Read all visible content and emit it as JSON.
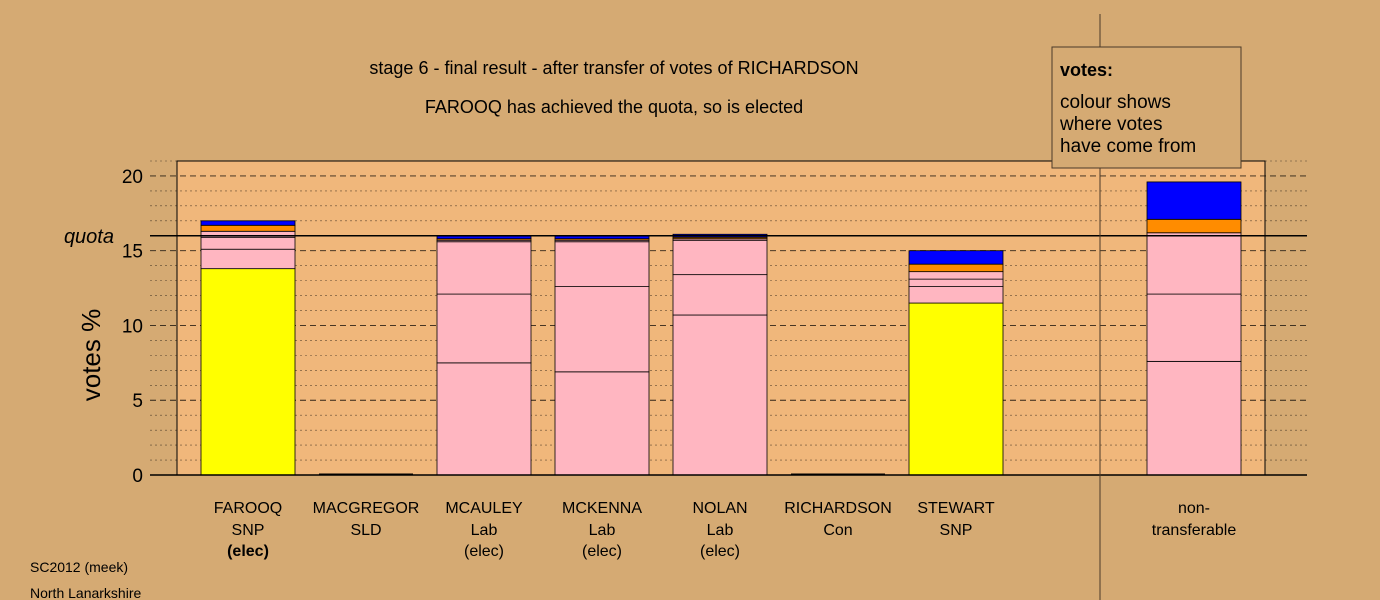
{
  "chart_data": {
    "type": "bar",
    "stacked": true,
    "title": "stage 6 - final result - after transfer of votes of RICHARDSON",
    "subtitle": "FAROOQ has achieved the quota, so is elected",
    "ylabel": "votes %",
    "ylim": [
      0,
      21
    ],
    "yticks": [
      "0",
      "5",
      "10",
      "15",
      "20"
    ],
    "quota_label": "quota",
    "quota_value": 16.0,
    "grid": true,
    "legend": {
      "title": "votes:",
      "lines": [
        "colour shows",
        "where votes",
        "have come from"
      ]
    },
    "categories": [
      {
        "name": "FAROOQ",
        "party": "SNP",
        "status": "(elec)",
        "status_bold": true,
        "segments": [
          {
            "value": 13.8,
            "color": "#ffff00"
          },
          {
            "value": 1.3,
            "color": "#ffb6c1"
          },
          {
            "value": 0.8,
            "color": "#ffb6c1"
          },
          {
            "value": 0.4,
            "color": "#ffb6c1"
          },
          {
            "value": 0.4,
            "color": "#ff8c00"
          },
          {
            "value": 0.3,
            "color": "#0000ff"
          }
        ]
      },
      {
        "name": "MACGREGOR",
        "party": "SLD",
        "status": "",
        "status_bold": false,
        "segments": []
      },
      {
        "name": "MCAULEY",
        "party": "Lab",
        "status": "(elec)",
        "status_bold": false,
        "segments": [
          {
            "value": 7.5,
            "color": "#ffb6c1"
          },
          {
            "value": 4.6,
            "color": "#ffb6c1"
          },
          {
            "value": 3.5,
            "color": "#ffb6c1"
          },
          {
            "value": 0.1,
            "color": "#ffb6c1"
          },
          {
            "value": 0.1,
            "color": "#ff8c00"
          },
          {
            "value": 0.2,
            "color": "#0000ff"
          }
        ]
      },
      {
        "name": "MCKENNA",
        "party": "Lab",
        "status": "(elec)",
        "status_bold": false,
        "segments": [
          {
            "value": 6.9,
            "color": "#ffb6c1"
          },
          {
            "value": 5.7,
            "color": "#ffb6c1"
          },
          {
            "value": 3.0,
            "color": "#ffb6c1"
          },
          {
            "value": 0.1,
            "color": "#ffb6c1"
          },
          {
            "value": 0.1,
            "color": "#ff8c00"
          },
          {
            "value": 0.2,
            "color": "#0000ff"
          }
        ]
      },
      {
        "name": "NOLAN",
        "party": "Lab",
        "status": "(elec)",
        "status_bold": false,
        "segments": [
          {
            "value": 10.7,
            "color": "#ffb6c1"
          },
          {
            "value": 2.7,
            "color": "#ffb6c1"
          },
          {
            "value": 2.3,
            "color": "#ffb6c1"
          },
          {
            "value": 0.1,
            "color": "#ffb6c1"
          },
          {
            "value": 0.1,
            "color": "#ff8c00"
          },
          {
            "value": 0.2,
            "color": "#0000ff"
          }
        ]
      },
      {
        "name": "RICHARDSON",
        "party": "Con",
        "status": "",
        "status_bold": false,
        "segments": []
      },
      {
        "name": "STEWART",
        "party": "SNP",
        "status": "",
        "status_bold": false,
        "segments": [
          {
            "value": 11.5,
            "color": "#ffff00"
          },
          {
            "value": 1.1,
            "color": "#ffb6c1"
          },
          {
            "value": 0.5,
            "color": "#ffb6c1"
          },
          {
            "value": 0.5,
            "color": "#ffb6c1"
          },
          {
            "value": 0.5,
            "color": "#ff8c00"
          },
          {
            "value": 0.9,
            "color": "#0000ff"
          }
        ]
      },
      {
        "name": "non-",
        "party": "transferable",
        "status": "",
        "status_bold": false,
        "separated": true,
        "segments": [
          {
            "value": 7.6,
            "color": "#ffb6c1"
          },
          {
            "value": 4.5,
            "color": "#ffb6c1"
          },
          {
            "value": 4.1,
            "color": "#ffb6c1"
          },
          {
            "value": 0.9,
            "color": "#ff8c00"
          },
          {
            "value": 2.5,
            "color": "#0000ff"
          }
        ]
      }
    ]
  },
  "footer": {
    "line1": "SC2012 (meek)",
    "line2": "North Lanarkshire"
  },
  "colors": {
    "background": "#d5aa73",
    "plot_background": "#f0b77b"
  }
}
